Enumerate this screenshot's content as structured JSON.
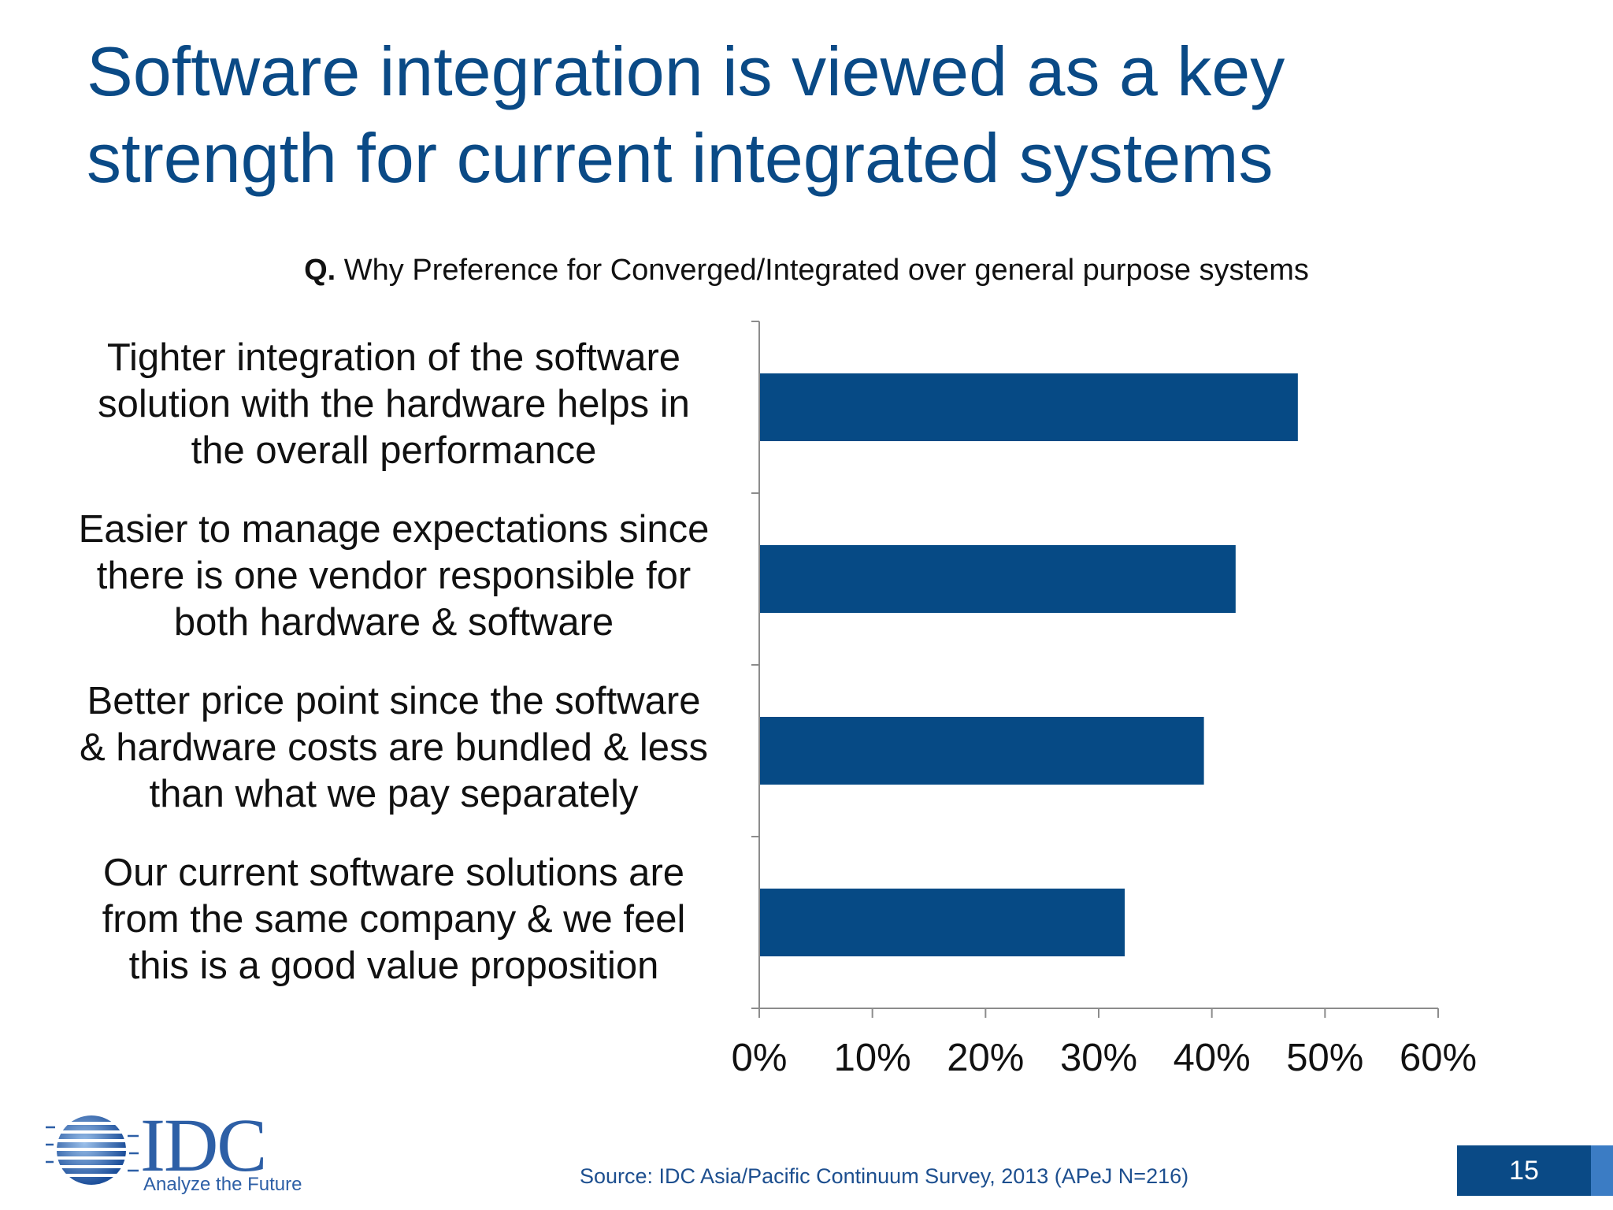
{
  "slide": {
    "title_line1": "Software integration is viewed as a key",
    "title_line2": "strength for current integrated systems",
    "question_prefix": "Q.",
    "question_text": " Why Preference for Converged/Integrated over general purpose systems",
    "source": "Source: IDC Asia/Pacific Continuum Survey, 2013 (APeJ N=216)",
    "page_number": "15",
    "logo_text": "IDC",
    "logo_tagline": "Analyze the Future"
  },
  "colors": {
    "title": "#0a4a86",
    "bar": "#064a85",
    "axis": "#8c8c8c"
  },
  "chart_data": {
    "type": "bar",
    "orientation": "horizontal",
    "categories": [
      [
        "Tighter integration of the software",
        "solution with the hardware helps in",
        "the overall performance"
      ],
      [
        "Easier to manage expectations since",
        "there is one vendor responsible for",
        "both hardware & software"
      ],
      [
        "Better price point since the software",
        "& hardware costs are bundled & less",
        "than what we pay separately"
      ],
      [
        "Our current software solutions are",
        "from the same company & we feel",
        "this is a good value proposition"
      ]
    ],
    "values": [
      47.6,
      42.1,
      39.3,
      32.3
    ],
    "xlim": [
      0,
      60
    ],
    "xticks": [
      0,
      10,
      20,
      30,
      40,
      50,
      60
    ],
    "xtick_labels": [
      "0%",
      "10%",
      "20%",
      "30%",
      "40%",
      "50%",
      "60%"
    ],
    "grid": false,
    "legend": "none"
  }
}
